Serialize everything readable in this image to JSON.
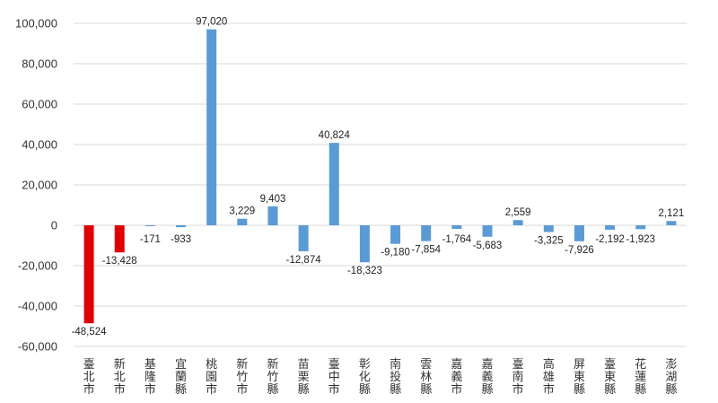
{
  "chart_data": {
    "type": "bar",
    "title": "",
    "xlabel": "",
    "ylabel": "",
    "ylim": [
      -60000,
      100000
    ],
    "yticks": [
      100000,
      80000,
      60000,
      40000,
      20000,
      0,
      -20000,
      -40000,
      -60000
    ],
    "ytick_labels": [
      "100,000",
      "80,000",
      "60,000",
      "40,000",
      "20,000",
      "0",
      "-20,000",
      "-40,000",
      "-60,000"
    ],
    "grid": true,
    "legend": "none",
    "categories": [
      "臺北市",
      "新北市",
      "基隆市",
      "宜蘭縣",
      "桃園市",
      "新竹市",
      "新竹縣",
      "苗栗縣",
      "臺中市",
      "彰化縣",
      "南投縣",
      "雲林縣",
      "嘉義市",
      "嘉義縣",
      "臺南市",
      "高雄市",
      "屏東縣",
      "臺東縣",
      "花蓮縣",
      "澎湖縣"
    ],
    "values": [
      -48524,
      -13428,
      -171,
      -933,
      97020,
      3229,
      9403,
      -12874,
      40824,
      -18323,
      -9180,
      -7854,
      -1764,
      -5683,
      2559,
      -3325,
      -7926,
      -2192,
      -1923,
      2121
    ],
    "data_labels": [
      "-48,524",
      "-13,428",
      "-171",
      "-933",
      "97,020",
      "3,229",
      "9,403",
      "-12,874",
      "40,824",
      "-18,323",
      "-9,180",
      "-7,854",
      "-1,764",
      "-5,683",
      "2,559",
      "-3,325",
      "-7,926",
      "-2,192",
      "-1,923",
      "2,121"
    ],
    "highlight_indices": [
      0,
      1
    ],
    "colors": {
      "default": "#5b9bd5",
      "highlight": "#e00000"
    }
  }
}
